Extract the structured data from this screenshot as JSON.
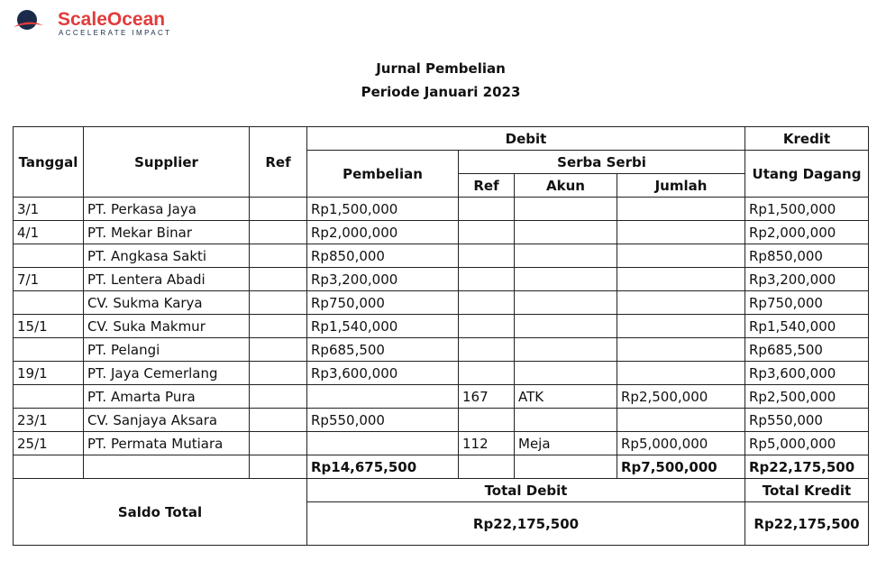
{
  "logo": {
    "name": "ScaleOcean",
    "tagline": "ACCELERATE IMPACT"
  },
  "header": {
    "title": "Jurnal Pembelian",
    "period": "Periode Januari 2023"
  },
  "table": {
    "columns": {
      "tanggal": "Tanggal",
      "supplier": "Supplier",
      "ref": "Ref",
      "debit": "Debit",
      "kredit": "Kredit",
      "pembelian": "Pembelian",
      "serba_serbi": "Serba Serbi",
      "utang_dagang": "Utang Dagang",
      "ss_ref": "Ref",
      "ss_akun": "Akun",
      "ss_jumlah": "Jumlah"
    },
    "rows": [
      [
        "3/1",
        "PT. Perkasa Jaya",
        null,
        "Rp1,500,000",
        null,
        null,
        null,
        "Rp1,500,000"
      ],
      [
        "4/1",
        "PT. Mekar Binar",
        null,
        "Rp2,000,000",
        null,
        null,
        null,
        "Rp2,000,000"
      ],
      [
        null,
        "PT. Angkasa Sakti",
        null,
        "Rp850,000",
        null,
        null,
        null,
        "Rp850,000"
      ],
      [
        "7/1",
        "PT. Lentera Abadi",
        null,
        "Rp3,200,000",
        null,
        null,
        null,
        "Rp3,200,000"
      ],
      [
        null,
        "CV. Sukma Karya",
        null,
        "Rp750,000",
        null,
        null,
        null,
        "Rp750,000"
      ],
      [
        "15/1",
        "CV. Suka Makmur",
        null,
        "Rp1,540,000",
        null,
        null,
        null,
        "Rp1,540,000"
      ],
      [
        null,
        "PT. Pelangi",
        null,
        "Rp685,500",
        null,
        null,
        null,
        "Rp685,500"
      ],
      [
        "19/1",
        "PT. Jaya Cemerlang",
        null,
        "Rp3,600,000",
        null,
        null,
        null,
        "Rp3,600,000"
      ],
      [
        null,
        "PT. Amarta Pura",
        null,
        null,
        "167",
        "ATK",
        "Rp2,500,000",
        "Rp2,500,000"
      ],
      [
        "23/1",
        "CV. Sanjaya Aksara",
        null,
        "Rp550,000",
        null,
        null,
        null,
        "Rp550,000"
      ],
      [
        "25/1",
        "PT. Permata Mutiara",
        null,
        null,
        "112",
        "Meja",
        "Rp5,000,000",
        "Rp5,000,000"
      ]
    ],
    "totals": [
      null,
      null,
      null,
      "Rp14,675,500",
      null,
      null,
      "Rp7,500,000",
      "Rp22,175,500"
    ],
    "saldo": {
      "label": "Saldo Total",
      "total_debit_label": "Total Debit",
      "total_kredit_label": "Total Kredit",
      "total_debit": "Rp22,175,500",
      "total_kredit": "Rp22,175,500"
    }
  }
}
